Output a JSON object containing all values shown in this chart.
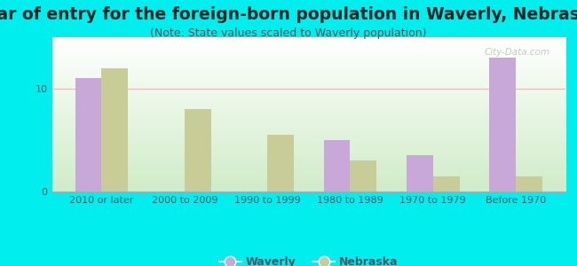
{
  "title": "Year of entry for the foreign-born population in Waverly, Nebraska",
  "subtitle": "(Note: State values scaled to Waverly population)",
  "categories": [
    "2010 or later",
    "2000 to 2009",
    "1990 to 1999",
    "1980 to 1989",
    "1970 to 1979",
    "Before 1970"
  ],
  "waverly_values": [
    11,
    0,
    0,
    5,
    3.5,
    13
  ],
  "nebraska_values": [
    12,
    8,
    5.5,
    3,
    1.5,
    1.5
  ],
  "waverly_color": "#c8a8d8",
  "nebraska_color": "#c8cc96",
  "background_outer": "#00eeee",
  "background_plot_top": "#ffffff",
  "background_plot_bottom": "#d0ecc8",
  "ylim": [
    0,
    15
  ],
  "yticks": [
    0,
    10
  ],
  "bar_width": 0.32,
  "title_fontsize": 13.5,
  "subtitle_fontsize": 9,
  "tick_fontsize": 8,
  "legend_fontsize": 9,
  "watermark_text": "City-Data.com",
  "grid_color": "#e8b8b8",
  "axis_line_color": "#aaaaaa",
  "title_color": "#222222",
  "subtitle_color": "#555555",
  "tick_color": "#555566"
}
